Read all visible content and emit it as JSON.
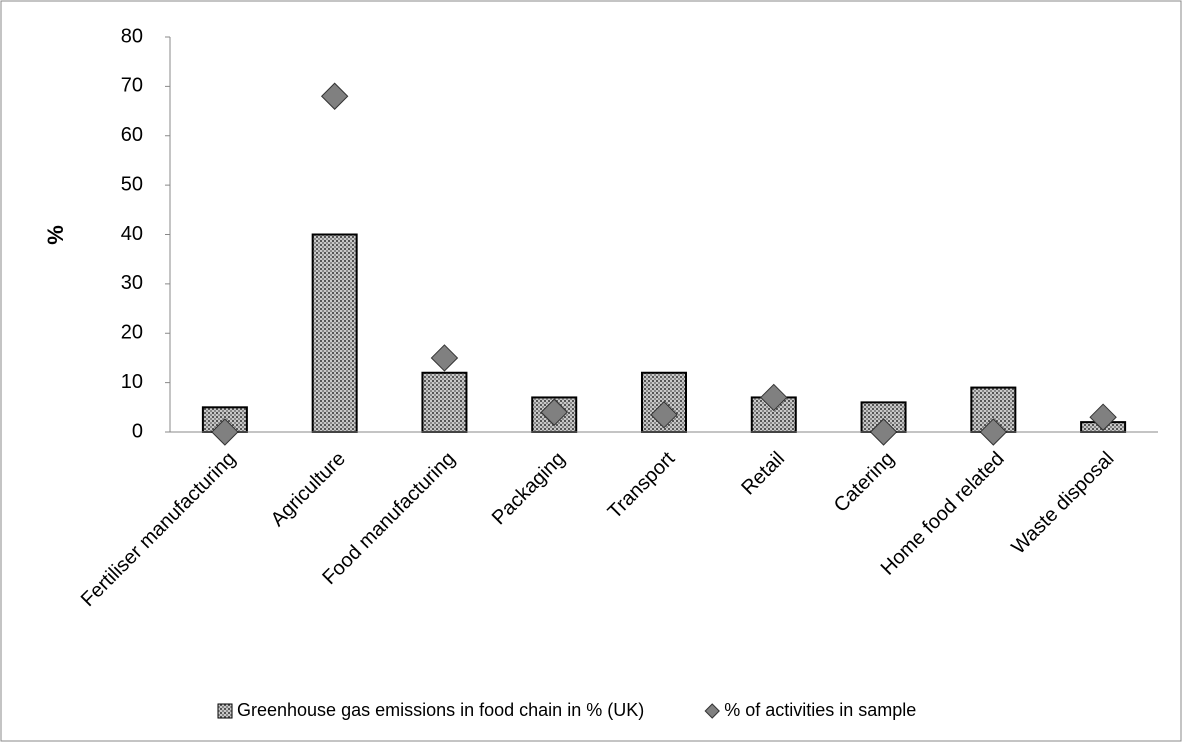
{
  "chart_data": {
    "type": "bar",
    "categories": [
      "Fertiliser manufacturing",
      "Agriculture",
      "Food manufacturing",
      "Packaging",
      "Transport",
      "Retail",
      "Catering",
      "Home food related",
      "Waste disposal"
    ],
    "series": [
      {
        "name": "Greenhouse gas emissions in food chain in % (UK)",
        "type": "bar",
        "color": "#c8c8c8",
        "values": [
          5,
          40,
          12,
          7,
          12,
          7,
          6,
          9,
          2
        ]
      },
      {
        "name": "% of activities in sample",
        "type": "scatter",
        "color": "#808080",
        "values": [
          0,
          68,
          15,
          4,
          3.5,
          7,
          0,
          0,
          3
        ]
      }
    ],
    "y_label": "%",
    "ylim": [
      0,
      80
    ],
    "yticks": [
      0,
      10,
      20,
      30,
      40,
      50,
      60,
      70,
      80
    ],
    "grid": false,
    "legend": "bottom"
  }
}
